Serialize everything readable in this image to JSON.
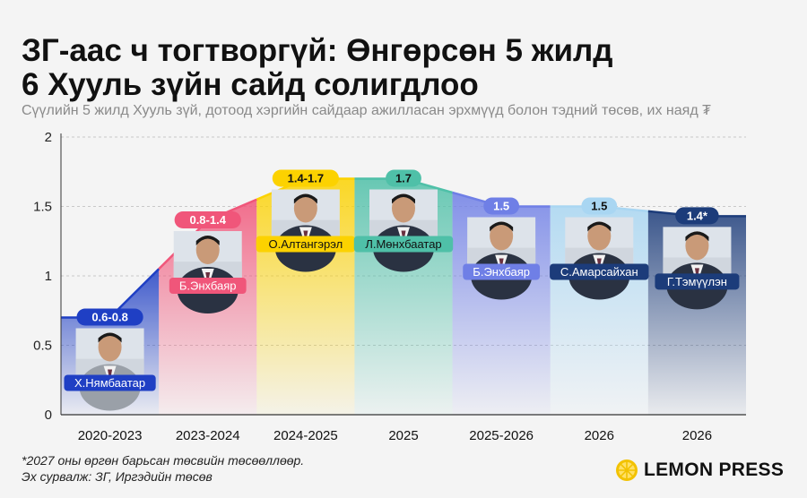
{
  "title_line1": "ЗГ-аас ч тогтворгүй: Өнгөрсөн 5 жилд",
  "title_line2": "6 Хууль зүйн сайд солигдлоо",
  "subtitle": "Сүүлийн 5 жилд Хууль зүй, дотоод хэргийн сайдаар ажилласан эрхмүүд болон тэдний төсөв, их наяд ₮",
  "footnote_line1": "*2027 оны өргөн барьсан төсвийн төсөөллөөр.",
  "footnote_line2": "Эх сурвалж: ЗГ, Иргэдийн төсөв",
  "brand": {
    "name": "LEMON PRESS",
    "logo_icon": "lemon-slice-icon",
    "logo_color": "#f2c200"
  },
  "chart_data": {
    "type": "line",
    "ylim": [
      0,
      2
    ],
    "yticks": [
      "0",
      "0.5",
      "1",
      "1.5",
      "2"
    ],
    "grid": "horizontal dashed",
    "categories": [
      "2020-2023",
      "2023-2024",
      "2024-2025",
      "2025",
      "2025-2026",
      "2026",
      "2026"
    ],
    "values": [
      0.7,
      1.4,
      1.7,
      1.7,
      1.5,
      1.5,
      1.43
    ],
    "value_labels": [
      "0.6-0.8",
      "0.8-1.4",
      "1.4-1.7",
      "1.7",
      "1.5",
      "1.5",
      "1.4*"
    ],
    "ministers": [
      "Х.Нямбаатар",
      "Б.Энхбаяр",
      "О.Алтангэрэл",
      "Л.Мөнхбаатар",
      "Б.Энхбаяр",
      "С.Амарсайхан",
      "Г.Тэмүүлэн"
    ],
    "colors": [
      "#1f3fc4",
      "#f0567a",
      "#fcd200",
      "#4fc0a8",
      "#6f7fe6",
      "#a9d6f2",
      "#1c3c7a"
    ],
    "label_text_colors": [
      "#ffffff",
      "#ffffff",
      "#111111",
      "#111111",
      "#ffffff",
      "#111111",
      "#ffffff"
    ],
    "name_box_colors": [
      "#1f3fc4",
      "#f0567a",
      "#fcd200",
      "#4fc0a8",
      "#6f7fe6",
      "#1c3c7a",
      "#1c3c7a"
    ],
    "name_text_colors": [
      "#ffffff",
      "#ffffff",
      "#111111",
      "#111111",
      "#ffffff",
      "#ffffff",
      "#ffffff"
    ],
    "photo_icons": [
      "portrait-photo-icon",
      "portrait-photo-icon",
      "portrait-photo-icon",
      "portrait-photo-icon",
      "portrait-photo-icon",
      "portrait-photo-icon",
      "portrait-photo-icon"
    ]
  }
}
